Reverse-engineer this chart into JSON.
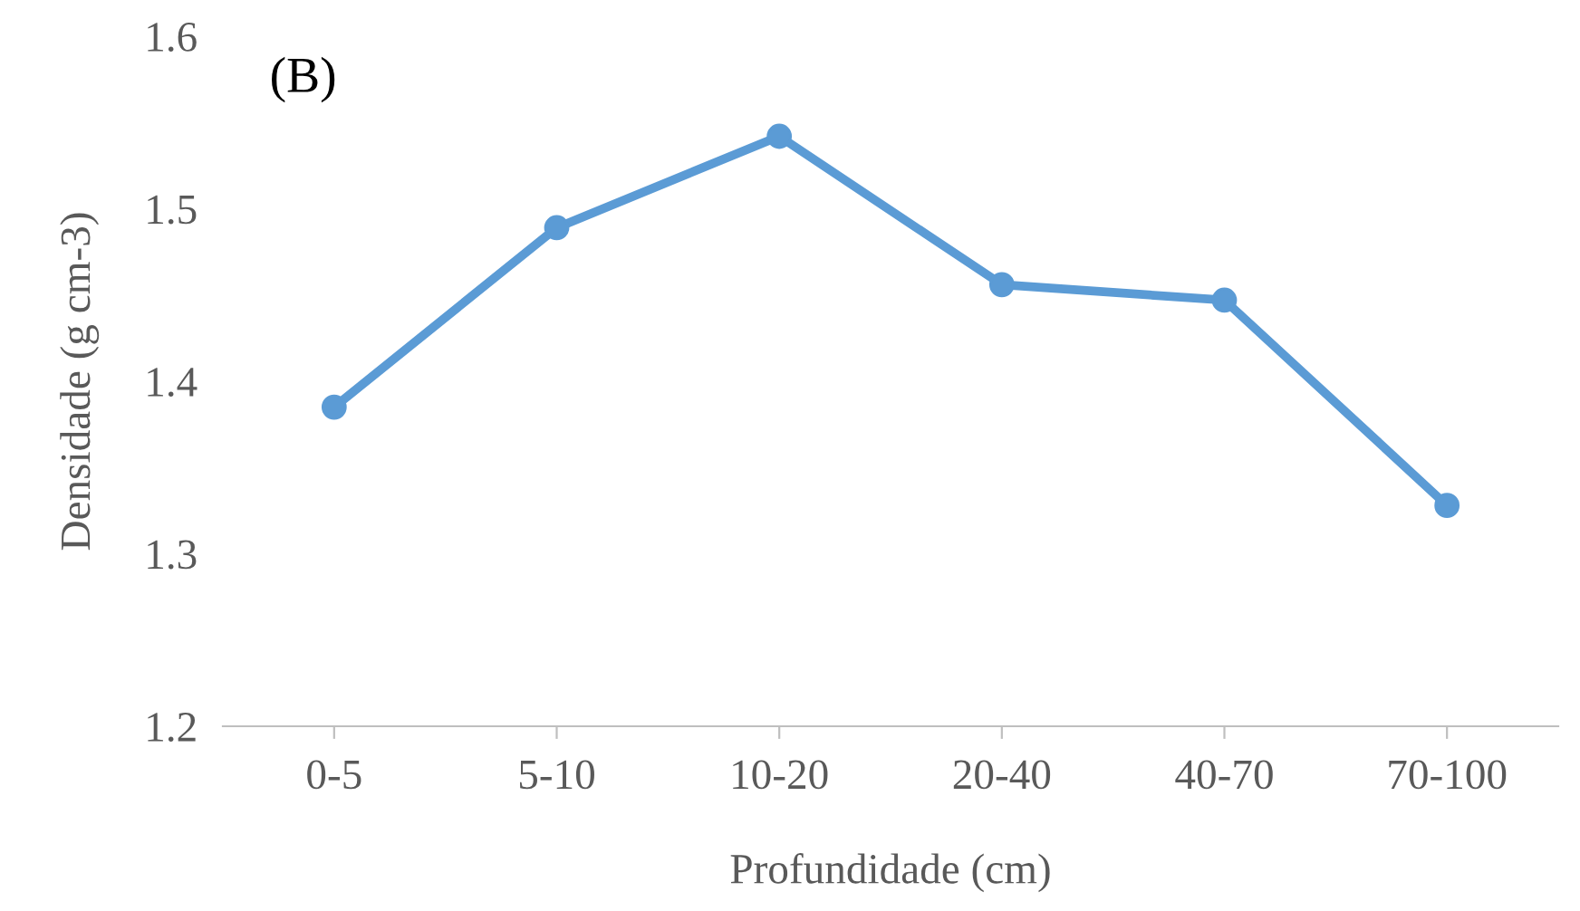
{
  "chart_data": {
    "type": "line",
    "xlabel": "Profundidade (cm)",
    "ylabel": "Densidade (g cm-3)",
    "annotations": [
      "(B)"
    ],
    "categories": [
      "0-5",
      "5-10",
      "10-20",
      "20-40",
      "40-70",
      "70-100"
    ],
    "series": [
      {
        "color": "#5b9bd5",
        "values": [
          1.385,
          1.489,
          1.542,
          1.456,
          1.447,
          1.328
        ]
      }
    ],
    "ylim": [
      1.2,
      1.6
    ],
    "yticks": [
      1.2,
      1.3,
      1.4,
      1.5,
      1.6
    ],
    "grid": false,
    "legend": false,
    "marker": "circle",
    "line_style": "solid"
  }
}
